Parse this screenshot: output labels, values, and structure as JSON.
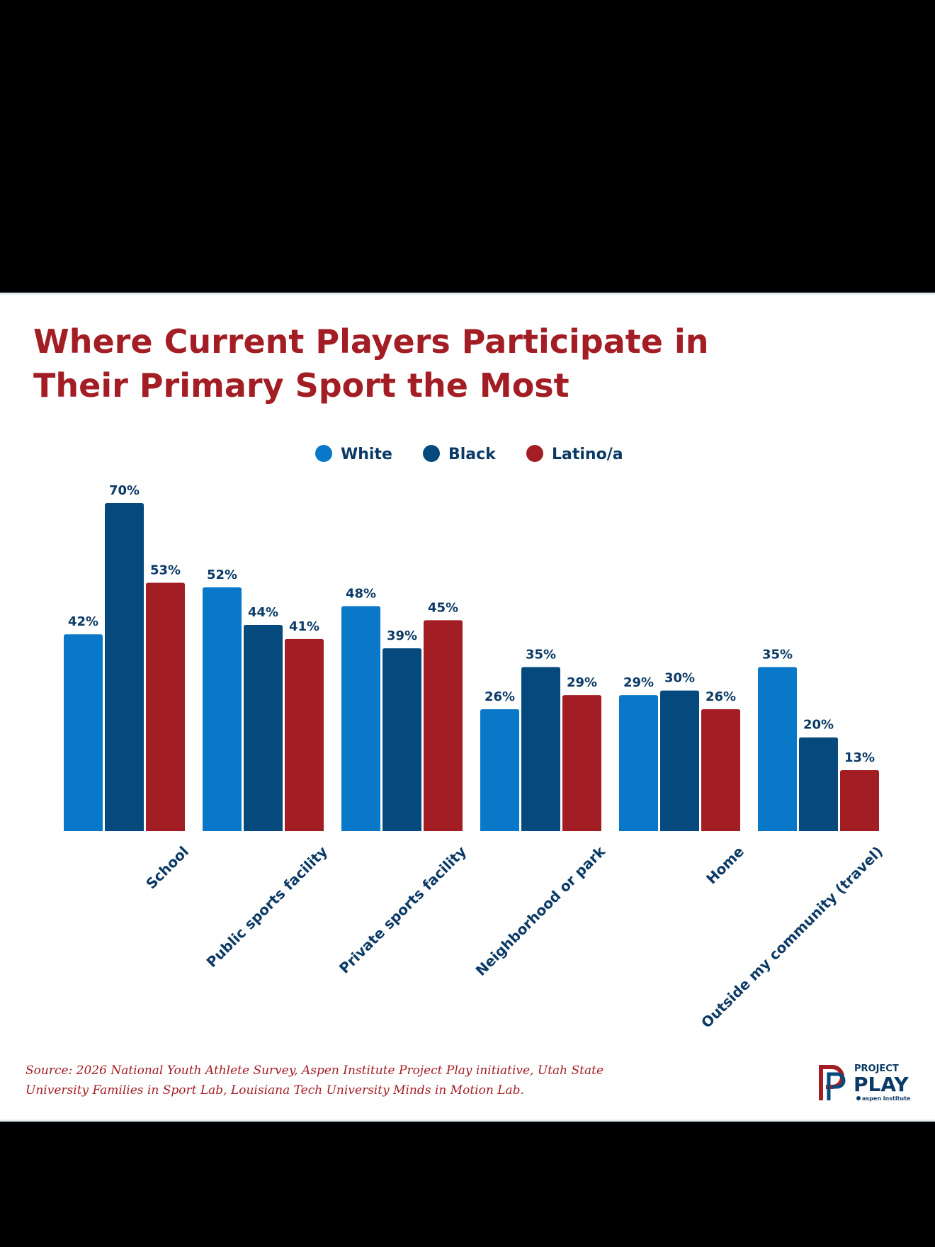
{
  "chart_data": {
    "type": "bar",
    "title_lines": [
      "Where Current Players Participate in",
      "Their Primary Sport the Most"
    ],
    "categories": [
      "School",
      "Public sports facility",
      "Private sports facility",
      "Neighborhood or park",
      "Home",
      "Outside my community (travel)"
    ],
    "series": [
      {
        "name": "White",
        "color": "#0a78c9",
        "values": [
          42,
          52,
          48,
          26,
          29,
          35
        ],
        "labels": [
          "42%",
          "52%",
          "48%",
          "26%",
          "29%",
          "35%"
        ]
      },
      {
        "name": "Black",
        "color": "#064a7d",
        "values": [
          70,
          44,
          39,
          35,
          30,
          20
        ],
        "labels": [
          "70%",
          "44%",
          "39%",
          "35%",
          "30%",
          "20%"
        ]
      },
      {
        "name": "Latino/a",
        "color": "#a31d24",
        "values": [
          53,
          41,
          45,
          29,
          26,
          13
        ],
        "labels": [
          "53%",
          "41%",
          "45%",
          "29%",
          "26%",
          "13%"
        ]
      }
    ],
    "legend_position": "top-center",
    "ylim": [
      0,
      70
    ],
    "grid": false
  },
  "source_lines": [
    "Source: 2026 National Youth Athlete Survey, Aspen Institute Project Play initiative, Utah State",
    "University Families in Sport Lab, Louisiana Tech University Minds in Motion Lab."
  ],
  "logo": {
    "small": "PROJECT",
    "big": "PLAY",
    "tiny": "aspen institute"
  }
}
